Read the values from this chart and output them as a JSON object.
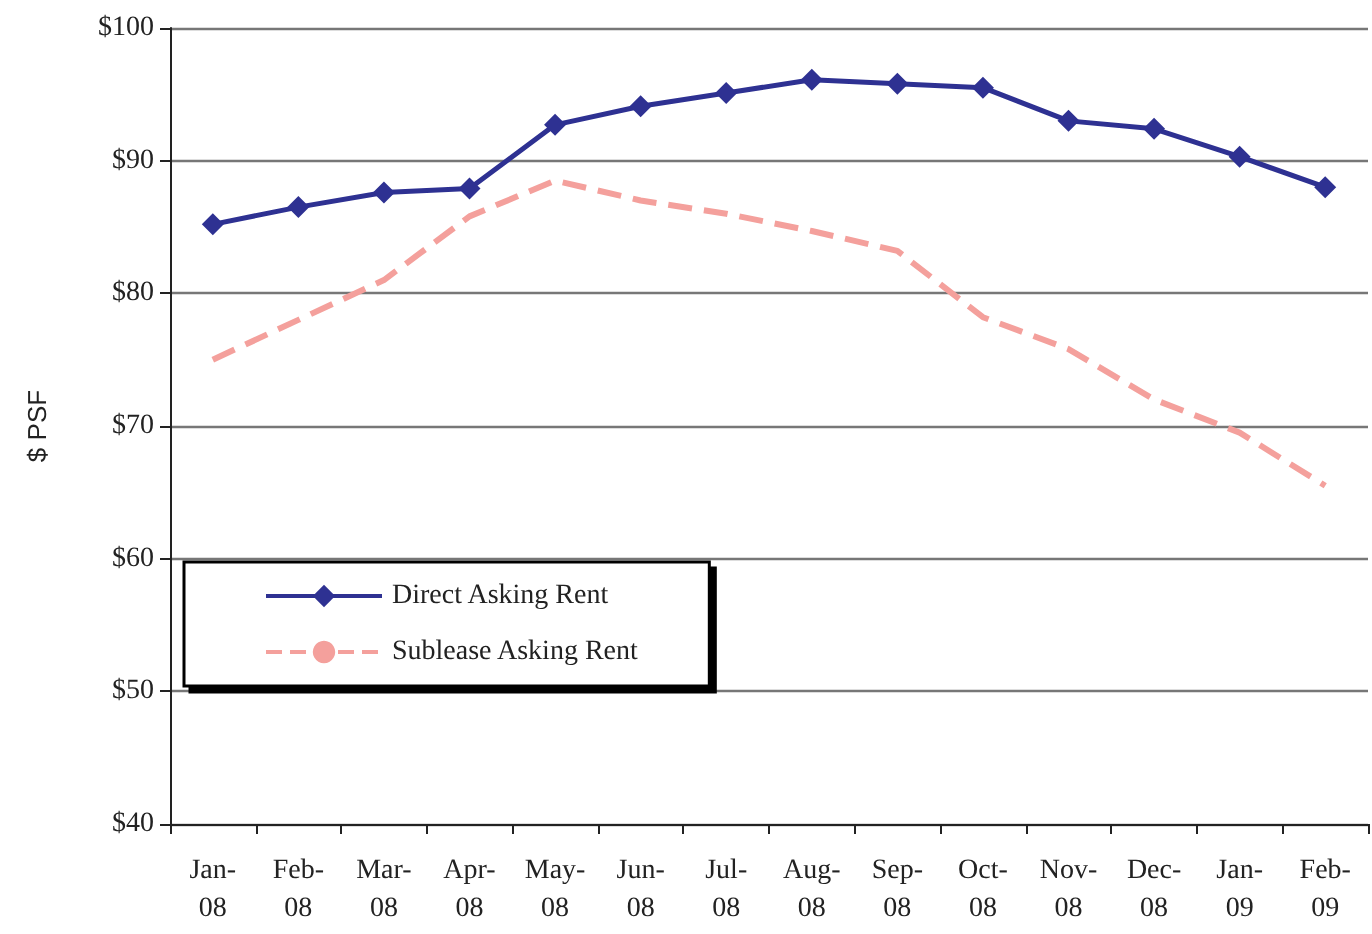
{
  "chart_data": {
    "type": "line",
    "ylabel": "$ PSF",
    "categories": [
      "Jan-08",
      "Feb-08",
      "Mar-08",
      "Apr-08",
      "May-08",
      "Jun-08",
      "Jul-08",
      "Aug-08",
      "Sep-08",
      "Oct-08",
      "Nov-08",
      "Dec-08",
      "Jan-09",
      "Feb-09"
    ],
    "series": [
      {
        "name": "Direct Asking Rent",
        "color": "#2e3192",
        "marker": "diamond",
        "line_style": "solid",
        "values": [
          85.2,
          86.5,
          87.6,
          87.9,
          92.7,
          94.1,
          95.1,
          96.1,
          95.8,
          95.5,
          93.0,
          92.4,
          90.3,
          88.0
        ]
      },
      {
        "name": "Sublease Asking Rent",
        "color": "#f4a09c",
        "marker": "none",
        "line_style": "dashed",
        "values": [
          75.0,
          78.0,
          81.0,
          85.8,
          88.5,
          87.0,
          86.0,
          84.7,
          83.2,
          78.2,
          75.8,
          72.0,
          69.5,
          65.5
        ]
      }
    ],
    "ylim": [
      40,
      100
    ],
    "yticks": [
      {
        "value": 40,
        "label": "$40"
      },
      {
        "value": 50,
        "label": "$50"
      },
      {
        "value": 60,
        "label": "$60"
      },
      {
        "value": 70,
        "label": "$70"
      },
      {
        "value": 80,
        "label": "$80"
      },
      {
        "value": 90,
        "label": "$90"
      },
      {
        "value": 100,
        "label": "$100"
      }
    ],
    "grid": "y",
    "legend": "bottom left"
  }
}
